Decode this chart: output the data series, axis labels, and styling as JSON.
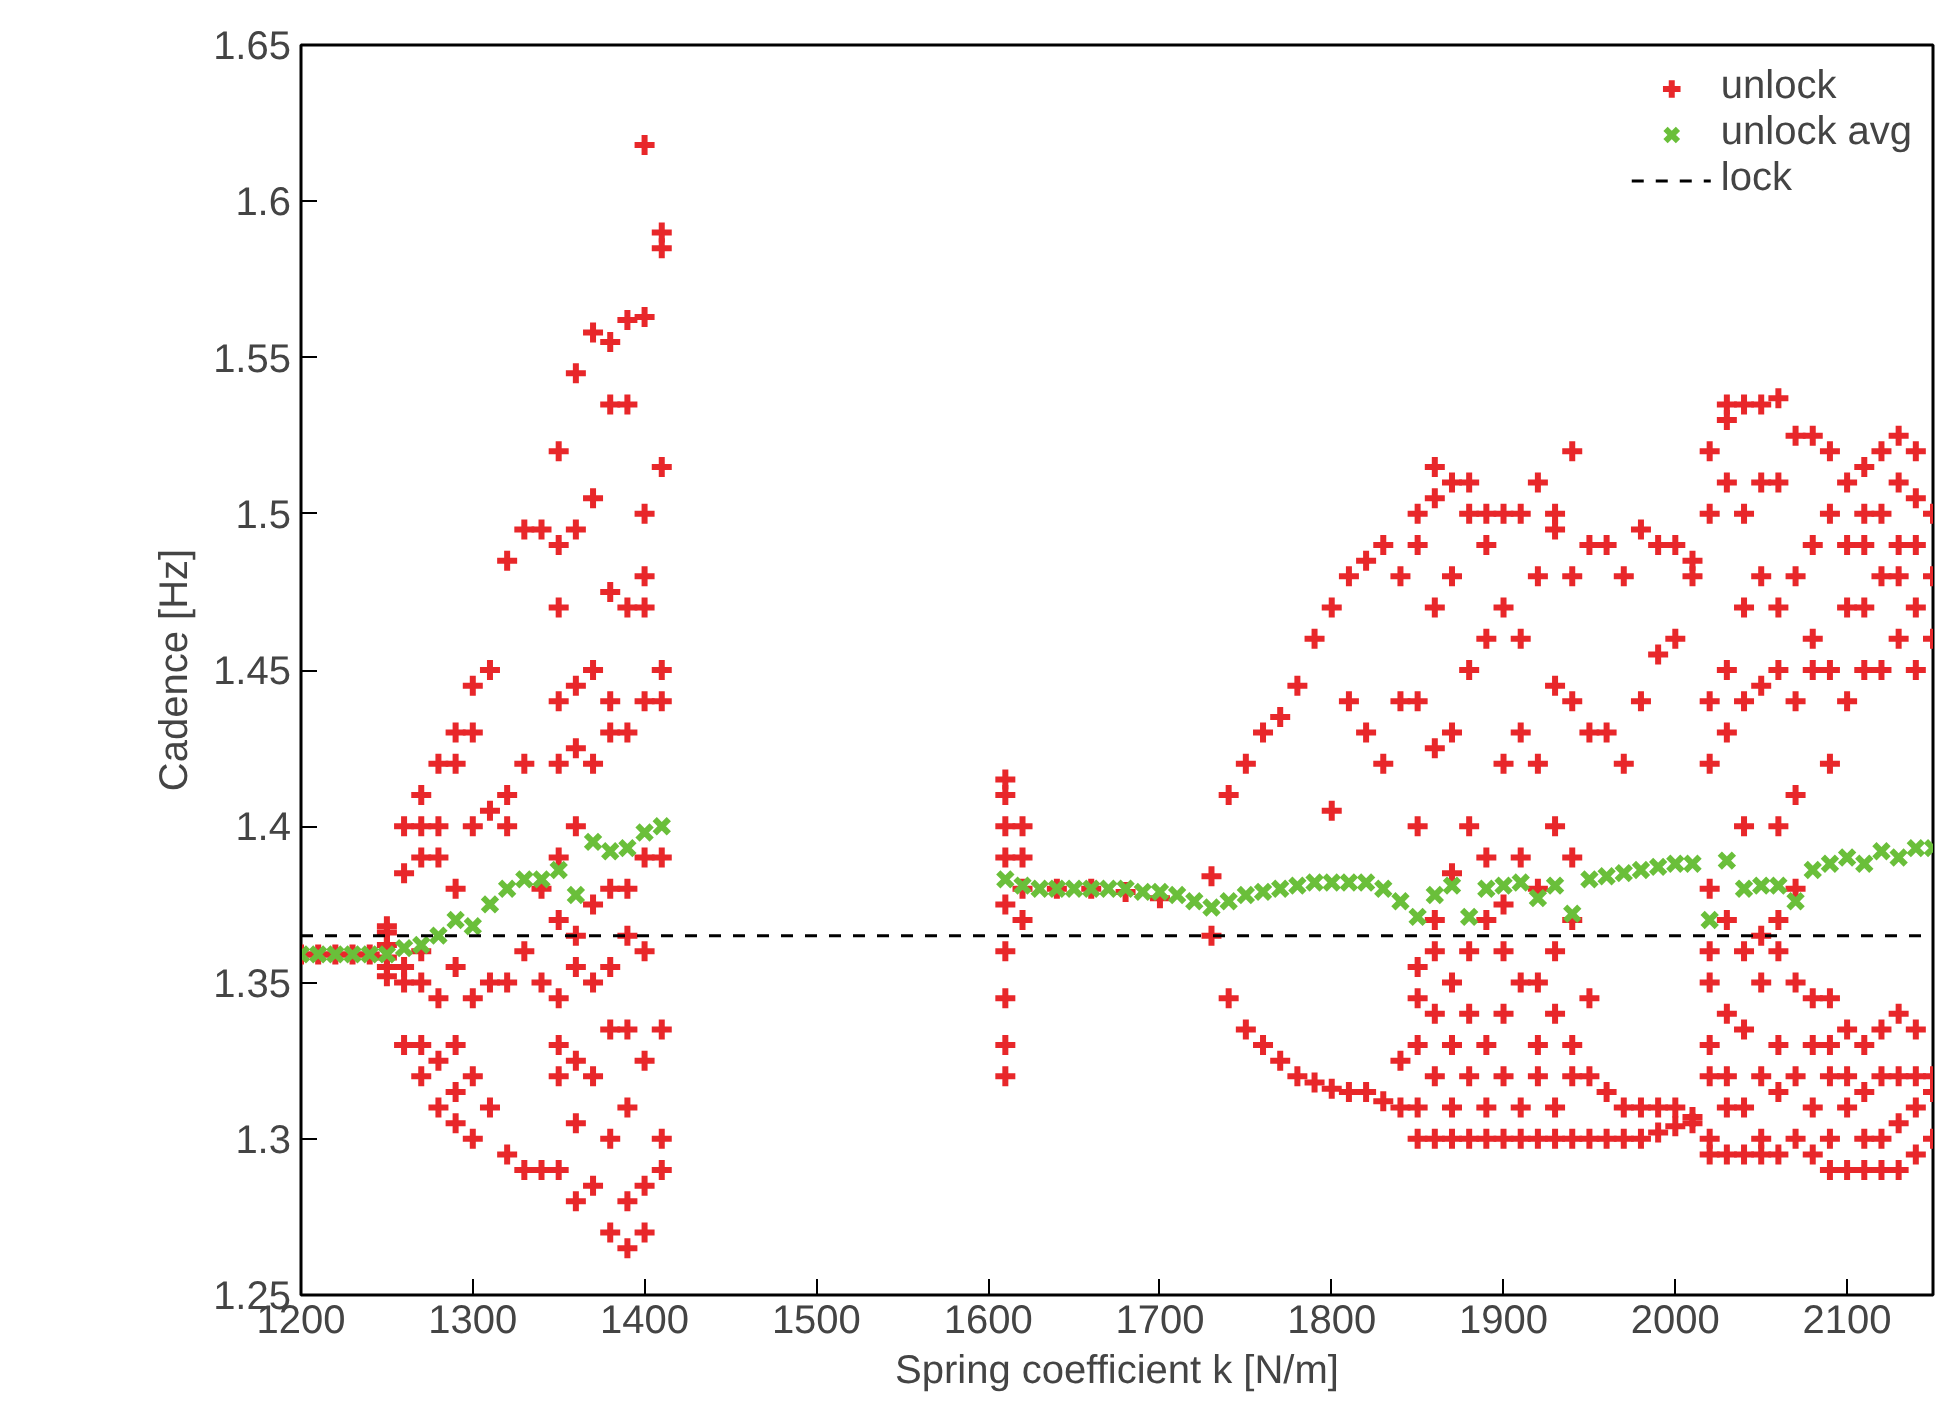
{
  "chart_data": {
    "type": "scatter",
    "xlabel": "Spring coefficient k [N/m]",
    "ylabel": "Cadence [Hz]",
    "xlim": [
      1200,
      2150
    ],
    "xticks": [
      1200,
      1300,
      1400,
      1500,
      1600,
      1700,
      1800,
      1900,
      2000,
      2100
    ],
    "ylim": [
      1.25,
      1.65
    ],
    "yticks": [
      1.25,
      {
        "value": 1.3,
        "label": "1.3"
      },
      1.35,
      {
        "value": 1.4,
        "label": "1.4"
      },
      1.45,
      {
        "value": 1.5,
        "label": "1.5"
      },
      1.55,
      {
        "value": 1.6,
        "label": "1.6"
      },
      1.65
    ],
    "grid": false,
    "legend": "top right",
    "series": [
      {
        "name": "unlock",
        "color": "#e8272a",
        "marker": "cross",
        "x": [
          1200,
          1210,
          1220,
          1230,
          1240,
          1250,
          1250,
          1250,
          1250,
          1250,
          1250,
          1260,
          1260,
          1260,
          1260,
          1260,
          1270,
          1270,
          1270,
          1270,
          1270,
          1270,
          1270,
          1280,
          1280,
          1280,
          1280,
          1280,
          1280,
          1290,
          1290,
          1290,
          1290,
          1290,
          1290,
          1290,
          1300,
          1300,
          1300,
          1300,
          1300,
          1300,
          1310,
          1310,
          1310,
          1310,
          1320,
          1320,
          1320,
          1320,
          1320,
          1330,
          1330,
          1330,
          1330,
          1340,
          1340,
          1340,
          1340,
          1350,
          1350,
          1350,
          1350,
          1350,
          1350,
          1350,
          1350,
          1350,
          1350,
          1350,
          1360,
          1360,
          1360,
          1360,
          1360,
          1360,
          1360,
          1360,
          1360,
          1360,
          1370,
          1370,
          1370,
          1370,
          1370,
          1370,
          1370,
          1370,
          1380,
          1380,
          1380,
          1380,
          1380,
          1380,
          1380,
          1380,
          1380,
          1380,
          1390,
          1390,
          1390,
          1390,
          1390,
          1390,
          1390,
          1390,
          1390,
          1390,
          1400,
          1400,
          1400,
          1400,
          1400,
          1400,
          1400,
          1400,
          1400,
          1400,
          1400,
          1410,
          1410,
          1410,
          1410,
          1410,
          1410,
          1410,
          1410,
          1410,
          1610,
          1610,
          1610,
          1610,
          1610,
          1610,
          1610,
          1610,
          1610,
          1620,
          1620,
          1620,
          1620,
          1640,
          1660,
          1680,
          1700,
          1730,
          1730,
          1740,
          1740,
          1750,
          1750,
          1760,
          1760,
          1770,
          1770,
          1780,
          1780,
          1790,
          1790,
          1800,
          1800,
          1800,
          1810,
          1810,
          1810,
          1820,
          1820,
          1820,
          1830,
          1830,
          1830,
          1840,
          1840,
          1840,
          1840,
          1850,
          1850,
          1850,
          1850,
          1850,
          1850,
          1850,
          1850,
          1850,
          1860,
          1860,
          1860,
          1860,
          1860,
          1860,
          1860,
          1860,
          1860,
          1870,
          1870,
          1870,
          1870,
          1870,
          1870,
          1870,
          1870,
          1880,
          1880,
          1880,
          1880,
          1880,
          1880,
          1880,
          1880,
          1890,
          1890,
          1890,
          1890,
          1890,
          1890,
          1890,
          1890,
          1900,
          1900,
          1900,
          1900,
          1900,
          1900,
          1900,
          1900,
          1910,
          1910,
          1910,
          1910,
          1910,
          1910,
          1910,
          1920,
          1920,
          1920,
          1920,
          1920,
          1920,
          1920,
          1920,
          1930,
          1930,
          1930,
          1930,
          1930,
          1930,
          1930,
          1930,
          1940,
          1940,
          1940,
          1940,
          1940,
          1940,
          1940,
          1940,
          1950,
          1950,
          1950,
          1950,
          1950,
          1960,
          1960,
          1960,
          1960,
          1970,
          1970,
          1970,
          1970,
          1980,
          1980,
          1980,
          1980,
          1990,
          1990,
          1990,
          1990,
          2000,
          2000,
          2000,
          2000,
          2010,
          2010,
          2010,
          2010,
          2020,
          2020,
          2020,
          2020,
          2020,
          2020,
          2020,
          2020,
          2020,
          2020,
          2020,
          2030,
          2030,
          2030,
          2030,
          2030,
          2030,
          2030,
          2030,
          2030,
          2030,
          2040,
          2040,
          2040,
          2040,
          2040,
          2040,
          2040,
          2040,
          2040,
          2050,
          2050,
          2050,
          2050,
          2050,
          2050,
          2050,
          2050,
          2050,
          2060,
          2060,
          2060,
          2060,
          2060,
          2060,
          2060,
          2060,
          2060,
          2060,
          2070,
          2070,
          2070,
          2070,
          2070,
          2070,
          2070,
          2070,
          2080,
          2080,
          2080,
          2080,
          2080,
          2080,
          2080,
          2080,
          2090,
          2090,
          2090,
          2090,
          2090,
          2090,
          2090,
          2090,
          2090,
          2100,
          2100,
          2100,
          2100,
          2100,
          2100,
          2100,
          2100,
          2110,
          2110,
          2110,
          2110,
          2110,
          2110,
          2110,
          2110,
          2110,
          2120,
          2120,
          2120,
          2120,
          2120,
          2120,
          2120,
          2120,
          2130,
          2130,
          2130,
          2130,
          2130,
          2130,
          2130,
          2130,
          2130,
          2140,
          2140,
          2140,
          2140,
          2140,
          2140,
          2140,
          2140,
          2140,
          2150,
          2150,
          2150,
          2150,
          2150,
          2150
        ],
        "values": [
          1.359,
          1.359,
          1.359,
          1.359,
          1.359,
          1.352,
          1.355,
          1.358,
          1.362,
          1.366,
          1.368,
          1.33,
          1.35,
          1.355,
          1.385,
          1.4,
          1.32,
          1.33,
          1.35,
          1.36,
          1.39,
          1.4,
          1.41,
          1.31,
          1.325,
          1.345,
          1.39,
          1.4,
          1.42,
          1.305,
          1.315,
          1.33,
          1.355,
          1.38,
          1.42,
          1.43,
          1.3,
          1.32,
          1.345,
          1.4,
          1.43,
          1.445,
          1.31,
          1.35,
          1.405,
          1.45,
          1.295,
          1.35,
          1.4,
          1.41,
          1.485,
          1.29,
          1.36,
          1.42,
          1.495,
          1.29,
          1.35,
          1.38,
          1.495,
          1.29,
          1.32,
          1.33,
          1.345,
          1.37,
          1.39,
          1.42,
          1.44,
          1.47,
          1.49,
          1.52,
          1.28,
          1.305,
          1.325,
          1.355,
          1.365,
          1.4,
          1.425,
          1.445,
          1.495,
          1.545,
          1.285,
          1.32,
          1.35,
          1.375,
          1.42,
          1.45,
          1.505,
          1.558,
          1.27,
          1.3,
          1.335,
          1.355,
          1.38,
          1.43,
          1.44,
          1.475,
          1.535,
          1.555,
          1.265,
          1.28,
          1.31,
          1.335,
          1.365,
          1.38,
          1.43,
          1.47,
          1.535,
          1.562,
          1.27,
          1.285,
          1.325,
          1.36,
          1.39,
          1.44,
          1.47,
          1.48,
          1.5,
          1.563,
          1.618,
          1.29,
          1.3,
          1.335,
          1.39,
          1.44,
          1.45,
          1.515,
          1.585,
          1.59,
          1.32,
          1.33,
          1.345,
          1.36,
          1.375,
          1.39,
          1.4,
          1.41,
          1.415,
          1.37,
          1.38,
          1.39,
          1.4,
          1.38,
          1.38,
          1.379,
          1.377,
          1.365,
          1.384,
          1.345,
          1.41,
          1.335,
          1.42,
          1.33,
          1.43,
          1.325,
          1.435,
          1.32,
          1.445,
          1.318,
          1.46,
          1.316,
          1.47,
          1.405,
          1.315,
          1.48,
          1.44,
          1.315,
          1.485,
          1.43,
          1.312,
          1.49,
          1.42,
          1.31,
          1.325,
          1.48,
          1.44,
          1.3,
          1.31,
          1.33,
          1.345,
          1.355,
          1.4,
          1.44,
          1.49,
          1.5,
          1.3,
          1.32,
          1.34,
          1.36,
          1.37,
          1.425,
          1.47,
          1.505,
          1.515,
          1.3,
          1.31,
          1.33,
          1.35,
          1.385,
          1.43,
          1.48,
          1.51,
          1.3,
          1.32,
          1.34,
          1.36,
          1.4,
          1.45,
          1.5,
          1.51,
          1.3,
          1.31,
          1.33,
          1.37,
          1.39,
          1.46,
          1.49,
          1.5,
          1.3,
          1.32,
          1.34,
          1.36,
          1.375,
          1.42,
          1.47,
          1.5,
          1.3,
          1.31,
          1.35,
          1.39,
          1.43,
          1.46,
          1.5,
          1.3,
          1.32,
          1.33,
          1.35,
          1.38,
          1.42,
          1.48,
          1.51,
          1.3,
          1.31,
          1.34,
          1.36,
          1.4,
          1.445,
          1.495,
          1.5,
          1.3,
          1.32,
          1.33,
          1.37,
          1.39,
          1.44,
          1.48,
          1.52,
          1.3,
          1.32,
          1.345,
          1.43,
          1.49,
          1.3,
          1.315,
          1.43,
          1.49,
          1.3,
          1.31,
          1.42,
          1.48,
          1.3,
          1.31,
          1.44,
          1.495,
          1.302,
          1.31,
          1.455,
          1.49,
          1.304,
          1.31,
          1.46,
          1.49,
          1.305,
          1.307,
          1.48,
          1.485,
          1.295,
          1.3,
          1.32,
          1.33,
          1.35,
          1.36,
          1.38,
          1.42,
          1.44,
          1.5,
          1.52,
          1.295,
          1.31,
          1.32,
          1.34,
          1.37,
          1.43,
          1.45,
          1.51,
          1.53,
          1.535,
          1.295,
          1.31,
          1.335,
          1.36,
          1.4,
          1.44,
          1.47,
          1.5,
          1.535,
          1.295,
          1.3,
          1.32,
          1.35,
          1.365,
          1.445,
          1.48,
          1.51,
          1.535,
          1.295,
          1.315,
          1.33,
          1.36,
          1.37,
          1.4,
          1.45,
          1.47,
          1.51,
          1.537,
          1.3,
          1.32,
          1.35,
          1.38,
          1.41,
          1.44,
          1.48,
          1.525,
          1.295,
          1.31,
          1.33,
          1.345,
          1.45,
          1.46,
          1.49,
          1.525,
          1.29,
          1.3,
          1.32,
          1.33,
          1.345,
          1.42,
          1.45,
          1.5,
          1.52,
          1.29,
          1.31,
          1.32,
          1.335,
          1.44,
          1.47,
          1.49,
          1.51,
          1.29,
          1.3,
          1.315,
          1.33,
          1.45,
          1.47,
          1.49,
          1.5,
          1.515,
          1.29,
          1.3,
          1.32,
          1.335,
          1.45,
          1.48,
          1.5,
          1.52,
          1.29,
          1.305,
          1.32,
          1.34,
          1.46,
          1.48,
          1.49,
          1.51,
          1.525,
          1.295,
          1.31,
          1.32,
          1.335,
          1.45,
          1.47,
          1.49,
          1.505,
          1.52,
          1.3,
          1.315,
          1.32,
          1.46,
          1.48,
          1.5
        ]
      },
      {
        "name": "unlock avg",
        "color": "#6abf3a",
        "marker": "x",
        "x": [
          1200,
          1210,
          1220,
          1230,
          1240,
          1250,
          1260,
          1270,
          1280,
          1290,
          1300,
          1310,
          1320,
          1330,
          1340,
          1350,
          1360,
          1370,
          1380,
          1390,
          1400,
          1410,
          1610,
          1620,
          1630,
          1640,
          1650,
          1660,
          1670,
          1680,
          1690,
          1700,
          1710,
          1720,
          1730,
          1740,
          1750,
          1760,
          1770,
          1780,
          1790,
          1800,
          1810,
          1820,
          1830,
          1840,
          1850,
          1860,
          1870,
          1880,
          1890,
          1900,
          1910,
          1920,
          1930,
          1940,
          1950,
          1960,
          1970,
          1980,
          1990,
          2000,
          2010,
          2020,
          2030,
          2040,
          2050,
          2060,
          2070,
          2080,
          2090,
          2100,
          2110,
          2120,
          2130,
          2140,
          2150
        ],
        "values": [
          1.359,
          1.359,
          1.359,
          1.359,
          1.359,
          1.359,
          1.361,
          1.362,
          1.365,
          1.37,
          1.368,
          1.375,
          1.38,
          1.383,
          1.383,
          1.386,
          1.378,
          1.395,
          1.392,
          1.393,
          1.398,
          1.4,
          1.383,
          1.381,
          1.38,
          1.38,
          1.38,
          1.38,
          1.38,
          1.38,
          1.379,
          1.379,
          1.378,
          1.376,
          1.374,
          1.376,
          1.378,
          1.379,
          1.38,
          1.381,
          1.382,
          1.382,
          1.382,
          1.382,
          1.38,
          1.376,
          1.371,
          1.378,
          1.381,
          1.371,
          1.38,
          1.381,
          1.382,
          1.377,
          1.381,
          1.372,
          1.383,
          1.384,
          1.385,
          1.386,
          1.387,
          1.388,
          1.388,
          1.37,
          1.389,
          1.38,
          1.381,
          1.381,
          1.376,
          1.386,
          1.388,
          1.39,
          1.388,
          1.392,
          1.39,
          1.393,
          1.393
        ]
      }
    ],
    "ref_lines": [
      {
        "axis": "y",
        "value": 1.365,
        "label": "lock",
        "color": "#000000",
        "line_style": "dashed"
      }
    ]
  }
}
